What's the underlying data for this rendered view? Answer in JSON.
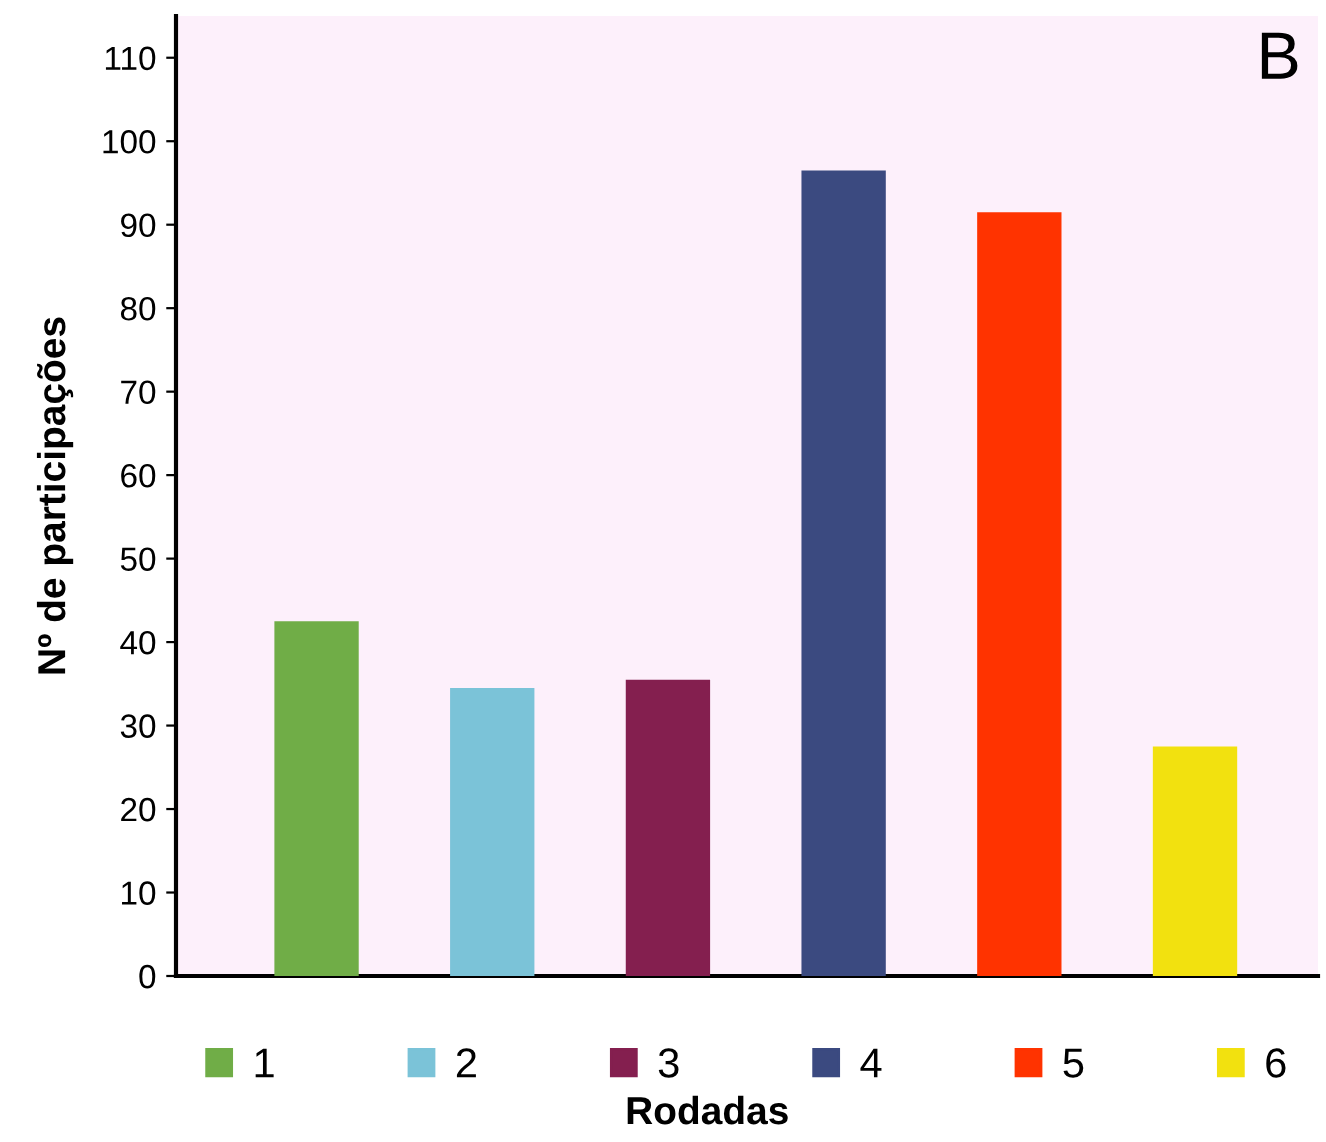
{
  "chart_data": {
    "type": "bar",
    "xlabel": "Rodadas",
    "ylabel": "Nº de participações",
    "categories": [
      null,
      null,
      null,
      null,
      null,
      null
    ],
    "series": [
      {
        "name": "1",
        "color": "#70ad47",
        "values": [
          42.5,
          null,
          null,
          null,
          null,
          null
        ]
      },
      {
        "name": "2",
        "color": "#7bc3d8",
        "values": [
          null,
          34.5,
          null,
          null,
          null,
          null
        ]
      },
      {
        "name": "3",
        "color": "#841f4f",
        "values": [
          null,
          null,
          35.5,
          null,
          null,
          null
        ]
      },
      {
        "name": "4",
        "color": "#3b4a80",
        "values": [
          null,
          null,
          null,
          96.5,
          null,
          null
        ]
      },
      {
        "name": "5",
        "color": "#ff3300",
        "values": [
          null,
          null,
          null,
          null,
          91.5,
          null
        ]
      },
      {
        "name": "6",
        "color": "#f2e10f",
        "values": [
          null,
          null,
          null,
          null,
          null,
          27.5
        ]
      }
    ],
    "ylim": [
      0,
      115
    ],
    "yticks": [
      0,
      10,
      20,
      30,
      40,
      50,
      60,
      70,
      80,
      90,
      100,
      110
    ],
    "grid": false,
    "legend": "bottom",
    "annotations": [
      "B"
    ]
  }
}
